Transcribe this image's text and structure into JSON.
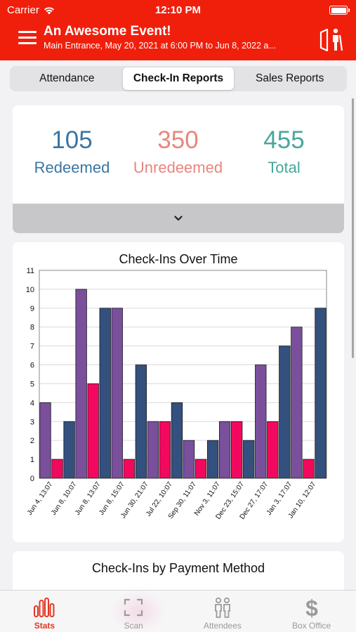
{
  "status": {
    "carrier": "Carrier",
    "time": "12:10 PM"
  },
  "header": {
    "title": "An Awesome Event!",
    "subtitle": "Main Entrance, May 20, 2021 at 6:00 PM to Jun  8, 2022 a..."
  },
  "segments": [
    "Attendance",
    "Check-In Reports",
    "Sales Reports"
  ],
  "active_segment": "Check-In Reports",
  "stats": [
    {
      "value": "105",
      "label": "Redeemed",
      "color": "#3a75a2"
    },
    {
      "value": "350",
      "label": "Unredeemed",
      "color": "#e8867c"
    },
    {
      "value": "455",
      "label": "Total",
      "color": "#48a79b"
    }
  ],
  "expand_icon": "chevron-down-icon",
  "colors": {
    "brand": "#f01f0c",
    "purple": "#7a4f9c",
    "navy": "#34507e",
    "pink": "#f2095f"
  },
  "chart_data": {
    "type": "bar",
    "title": "Check-Ins Over Time",
    "ylim": [
      0,
      11
    ],
    "yticks": [
      "0",
      "1",
      "2",
      "3",
      "4",
      "5",
      "6",
      "7",
      "8",
      "9",
      "10",
      "11"
    ],
    "grid": true,
    "categories": [
      "Jun 4, 13:07",
      "Jun 8, 10:07",
      "Jun 8, 13:07",
      "Jun 8, 15:07",
      "Jun 30, 21:07",
      "Jul 22, 10:07",
      "Sep 30, 11:07",
      "Nov 3, 11:07",
      "Dec 23, 15:07",
      "Dec 27, 17:07",
      "Jan 3, 17:07",
      "Jan 10, 12:07"
    ],
    "bars": [
      {
        "value": 4,
        "color": "#7a4f9c"
      },
      {
        "value": 1,
        "color": "#f2095f"
      },
      {
        "value": 3,
        "color": "#34507e"
      },
      {
        "value": 10,
        "color": "#7a4f9c"
      },
      {
        "value": 5,
        "color": "#f2095f"
      },
      {
        "value": 9,
        "color": "#34507e"
      },
      {
        "value": 9,
        "color": "#7a4f9c"
      },
      {
        "value": 1,
        "color": "#f2095f"
      },
      {
        "value": 6,
        "color": "#34507e"
      },
      {
        "value": 3,
        "color": "#7a4f9c"
      },
      {
        "value": 3,
        "color": "#f2095f"
      },
      {
        "value": 4,
        "color": "#34507e"
      },
      {
        "value": 2,
        "color": "#7a4f9c"
      },
      {
        "value": 1,
        "color": "#f2095f"
      },
      {
        "value": 2,
        "color": "#34507e"
      },
      {
        "value": 3,
        "color": "#7a4f9c"
      },
      {
        "value": 3,
        "color": "#f2095f"
      },
      {
        "value": 2,
        "color": "#34507e"
      },
      {
        "value": 6,
        "color": "#7a4f9c"
      },
      {
        "value": 3,
        "color": "#f2095f"
      },
      {
        "value": 7,
        "color": "#34507e"
      },
      {
        "value": 8,
        "color": "#7a4f9c"
      },
      {
        "value": 1,
        "color": "#f2095f"
      },
      {
        "value": 9,
        "color": "#34507e"
      }
    ]
  },
  "payment_card": {
    "title": "Check-Ins by Payment Method"
  },
  "tabs": [
    {
      "label": "Stats",
      "icon": "bar-chart-icon",
      "active": true
    },
    {
      "label": "Scan",
      "icon": "scan-icon",
      "active": false
    },
    {
      "label": "Attendees",
      "icon": "attendees-icon",
      "active": false
    },
    {
      "label": "Box Office",
      "icon": "dollar-icon",
      "active": false
    }
  ]
}
